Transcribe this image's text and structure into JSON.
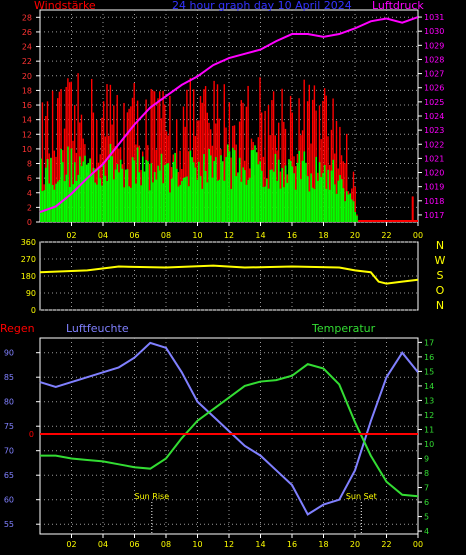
{
  "header": {
    "wind_title": "Windstärke",
    "date_title": "24 hour graph day  10 April 2024",
    "pressure_title": "Luftdruck"
  },
  "bottom_labels": {
    "regen": "Regen",
    "luftfeuchte": "Luftfeuchte",
    "temperatur": "Temperatur",
    "sun_rise": "Sun Rise",
    "sun_set": "Sun Set"
  },
  "colors": {
    "background": "#000000",
    "axis": "#ffffff",
    "grid_dots": "#9a9a9a",
    "wind_gust": "#ff0000",
    "wind_avg": "#00ff00",
    "pressure": "#ff00ff",
    "direction": "#ffff00",
    "humidity": "#8080ff",
    "temperature": "#33dd33",
    "rain": "#ff0000",
    "title_wind": "#ff0000",
    "title_date": "#3333ff",
    "title_pressure": "#ff00ff",
    "tick_hour": "#ffff00",
    "tick_wind": "#ff3333",
    "tick_pressure": "#ff00ff",
    "tick_dir": "#ffff00",
    "tick_hum": "#8080ff",
    "tick_temp": "#33dd33"
  },
  "chart_data": [
    {
      "type": "bar",
      "name": "wind",
      "hour_ticks": [
        "02",
        "04",
        "06",
        "08",
        "10",
        "12",
        "14",
        "16",
        "18",
        "20",
        "22",
        "00"
      ],
      "wind_ticks": [
        "0",
        "2",
        "4",
        "6",
        "8",
        "10",
        "12",
        "14",
        "16",
        "18",
        "20",
        "22",
        "24",
        "26",
        "28"
      ],
      "pressure_ticks": [
        "1017",
        "1018",
        "1019",
        "1020",
        "1021",
        "1022",
        "1023",
        "1024",
        "1025",
        "1026",
        "1027",
        "1028",
        "1029",
        "1030",
        "1031"
      ],
      "ylim_wind": [
        0,
        29
      ],
      "ylim_pressure": [
        1016.5,
        1031.5
      ],
      "xlim_hours": [
        0,
        24
      ],
      "gust_profile": [
        [
          0,
          14
        ],
        [
          2,
          17
        ],
        [
          5,
          17
        ],
        [
          8,
          16
        ],
        [
          11,
          17
        ],
        [
          14,
          17
        ],
        [
          17,
          17
        ],
        [
          19,
          15
        ],
        [
          20,
          5
        ],
        [
          20.2,
          0
        ],
        [
          24,
          0
        ]
      ],
      "avg_profile": [
        [
          0,
          8
        ],
        [
          2,
          9
        ],
        [
          5,
          9
        ],
        [
          8,
          8
        ],
        [
          11,
          9
        ],
        [
          14,
          9
        ],
        [
          17,
          8
        ],
        [
          19,
          7
        ],
        [
          20,
          2
        ],
        [
          20.2,
          0
        ],
        [
          24,
          0
        ]
      ],
      "pressure_series": [
        [
          0,
          1017.2
        ],
        [
          1,
          1017.6
        ],
        [
          2,
          1018.5
        ],
        [
          3,
          1019.6
        ],
        [
          4,
          1020.6
        ],
        [
          5,
          1022.0
        ],
        [
          6,
          1023.4
        ],
        [
          7,
          1024.6
        ],
        [
          8,
          1025.4
        ],
        [
          9,
          1026.2
        ],
        [
          10,
          1026.8
        ],
        [
          11,
          1027.6
        ],
        [
          12,
          1028.1
        ],
        [
          13,
          1028.4
        ],
        [
          14,
          1028.7
        ],
        [
          15,
          1029.3
        ],
        [
          16,
          1029.8
        ],
        [
          17,
          1029.8
        ],
        [
          18,
          1029.6
        ],
        [
          19,
          1029.8
        ],
        [
          20,
          1030.2
        ],
        [
          21,
          1030.7
        ],
        [
          22,
          1030.9
        ],
        [
          23,
          1030.6
        ],
        [
          24,
          1031.0
        ]
      ]
    },
    {
      "type": "line",
      "name": "direction",
      "dir_ticks": [
        "0",
        "90",
        "180",
        "270",
        "360"
      ],
      "compass_labels": [
        "N",
        "W",
        "S",
        "O",
        "N"
      ],
      "ylim": [
        0,
        360
      ],
      "series": [
        [
          0,
          200
        ],
        [
          3,
          210
        ],
        [
          5,
          230
        ],
        [
          8,
          225
        ],
        [
          11,
          235
        ],
        [
          13,
          225
        ],
        [
          16,
          230
        ],
        [
          19,
          225
        ],
        [
          20,
          210
        ],
        [
          21,
          200
        ],
        [
          21.5,
          150
        ],
        [
          22,
          140
        ],
        [
          23,
          150
        ],
        [
          24,
          160
        ]
      ]
    },
    {
      "type": "line",
      "name": "humidity_temperature",
      "hum_ticks": [
        "55",
        "60",
        "65",
        "70",
        "75",
        "80",
        "85",
        "90"
      ],
      "temp_ticks": [
        "4",
        "5",
        "6",
        "7",
        "8",
        "9",
        "10",
        "11",
        "12",
        "13",
        "14",
        "15",
        "16",
        "17"
      ],
      "ylim_humidity": [
        53,
        93
      ],
      "ylim_temperature": [
        3.8,
        17.3
      ],
      "rain_level_label": "0",
      "humidity_series": [
        [
          0,
          84
        ],
        [
          1,
          83
        ],
        [
          2,
          84
        ],
        [
          3,
          85
        ],
        [
          4,
          86
        ],
        [
          5,
          87
        ],
        [
          6,
          89
        ],
        [
          7,
          92
        ],
        [
          8,
          91
        ],
        [
          9,
          86
        ],
        [
          10,
          80
        ],
        [
          11,
          77
        ],
        [
          12,
          74
        ],
        [
          13,
          71
        ],
        [
          14,
          69
        ],
        [
          15,
          66
        ],
        [
          16,
          63
        ],
        [
          17,
          57
        ],
        [
          18,
          59
        ],
        [
          19,
          60
        ],
        [
          20,
          66
        ],
        [
          21,
          76
        ],
        [
          22,
          85
        ],
        [
          23,
          90
        ],
        [
          24,
          86
        ]
      ],
      "temperature_series": [
        [
          0,
          9.2
        ],
        [
          1,
          9.2
        ],
        [
          2,
          9.0
        ],
        [
          3,
          8.9
        ],
        [
          4,
          8.8
        ],
        [
          5,
          8.6
        ],
        [
          6,
          8.4
        ],
        [
          7,
          8.3
        ],
        [
          8,
          9.0
        ],
        [
          9,
          10.4
        ],
        [
          10,
          11.6
        ],
        [
          11,
          12.4
        ],
        [
          12,
          13.2
        ],
        [
          13,
          14.0
        ],
        [
          14,
          14.3
        ],
        [
          15,
          14.4
        ],
        [
          16,
          14.7
        ],
        [
          17,
          15.5
        ],
        [
          18,
          15.2
        ],
        [
          19,
          14.1
        ],
        [
          20,
          11.5
        ],
        [
          21,
          9.2
        ],
        [
          22,
          7.4
        ],
        [
          23,
          6.5
        ],
        [
          24,
          6.4
        ]
      ],
      "rain_series": [
        [
          0,
          0
        ],
        [
          24,
          0
        ]
      ],
      "sun_rise_hour": 7.1,
      "sun_set_hour": 20.4
    }
  ]
}
